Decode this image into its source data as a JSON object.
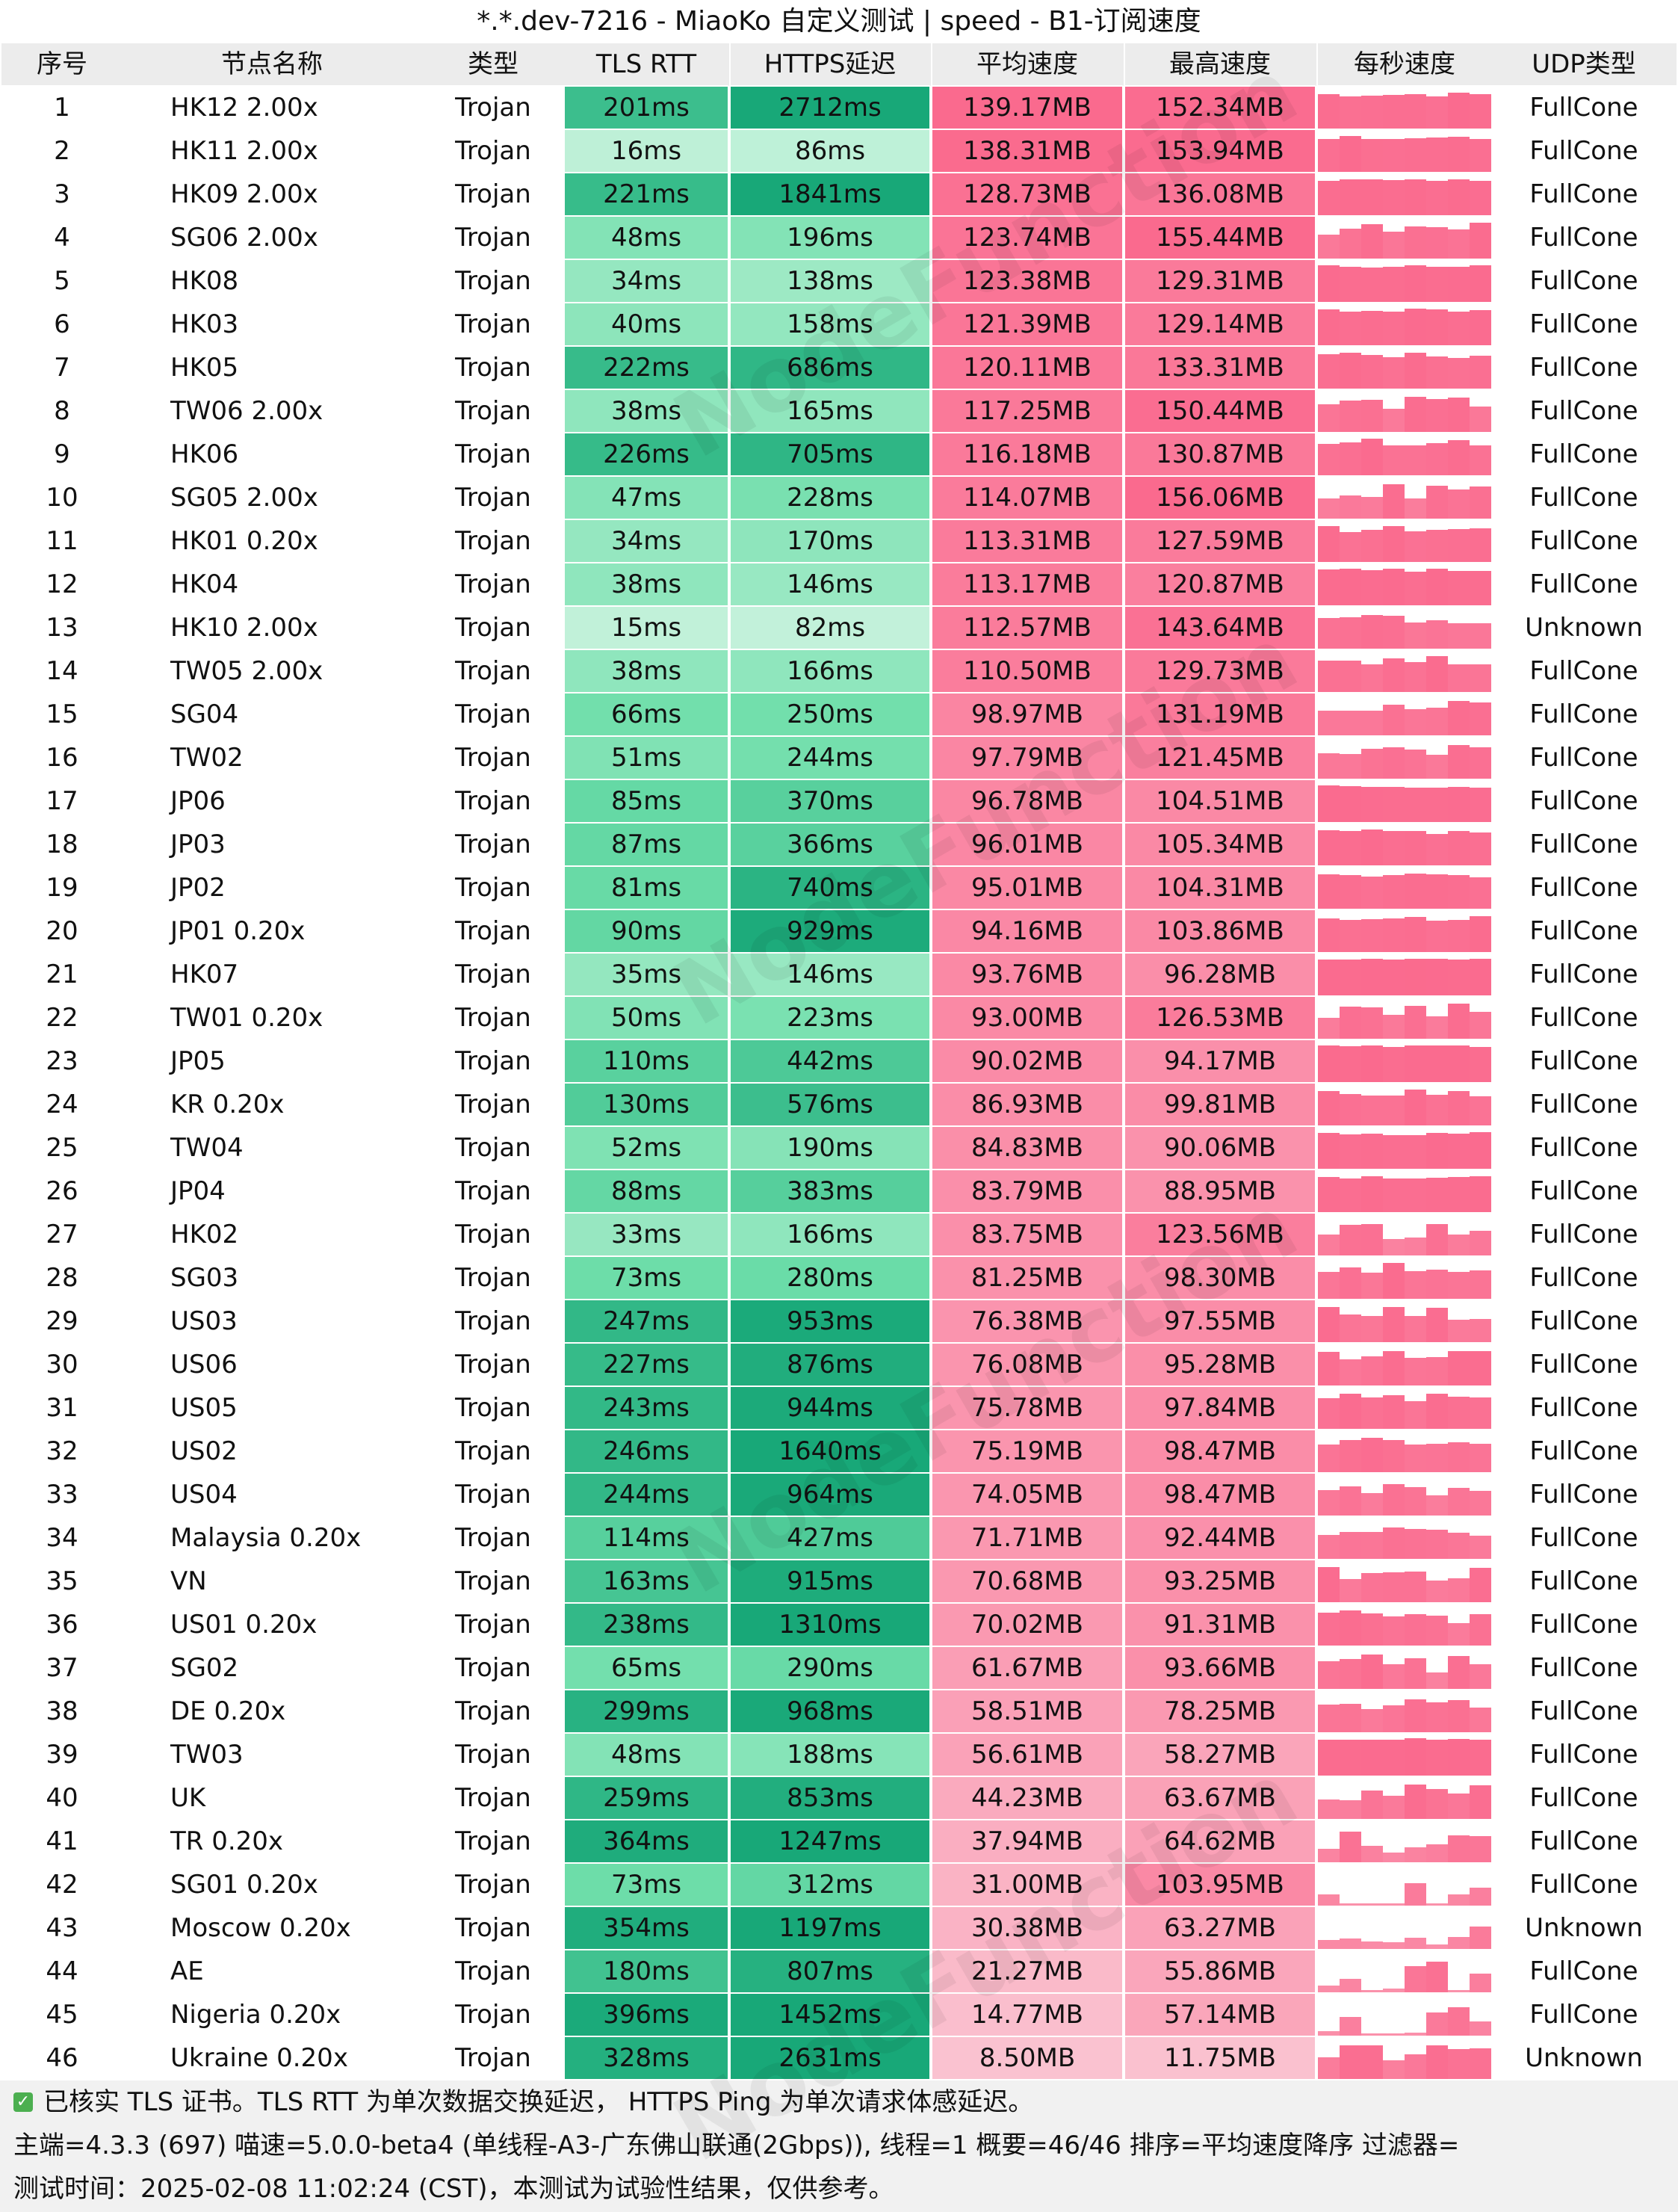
{
  "title": "*.*.dev-7216 - MiaoKo 自定义测试 | speed - B1-订阅速度",
  "headers": [
    "序号",
    "节点名称",
    "类型",
    "TLS RTT",
    "HTTPS延迟",
    "平均速度",
    "最高速度",
    "每秒速度",
    "UDP类型"
  ],
  "rows": [
    {
      "idx": "1",
      "flag": "hk",
      "name": "HK12 2.00x",
      "type": "Trojan",
      "tls": "201ms",
      "https": "2712ms",
      "avg": "139.17MB",
      "max": "152.34MB",
      "udp": "FullCone"
    },
    {
      "idx": "2",
      "flag": "hk",
      "name": "HK11 2.00x",
      "type": "Trojan",
      "tls": "16ms",
      "https": "86ms",
      "avg": "138.31MB",
      "max": "153.94MB",
      "udp": "FullCone"
    },
    {
      "idx": "3",
      "flag": "hk",
      "name": "HK09 2.00x",
      "type": "Trojan",
      "tls": "221ms",
      "https": "1841ms",
      "avg": "128.73MB",
      "max": "136.08MB",
      "udp": "FullCone"
    },
    {
      "idx": "4",
      "flag": "sg",
      "name": "SG06 2.00x",
      "type": "Trojan",
      "tls": "48ms",
      "https": "196ms",
      "avg": "123.74MB",
      "max": "155.44MB",
      "udp": "FullCone"
    },
    {
      "idx": "5",
      "flag": "hk",
      "name": "HK08",
      "type": "Trojan",
      "tls": "34ms",
      "https": "138ms",
      "avg": "123.38MB",
      "max": "129.31MB",
      "udp": "FullCone"
    },
    {
      "idx": "6",
      "flag": "hk",
      "name": "HK03",
      "type": "Trojan",
      "tls": "40ms",
      "https": "158ms",
      "avg": "121.39MB",
      "max": "129.14MB",
      "udp": "FullCone"
    },
    {
      "idx": "7",
      "flag": "hk",
      "name": "HK05",
      "type": "Trojan",
      "tls": "222ms",
      "https": "686ms",
      "avg": "120.11MB",
      "max": "133.31MB",
      "udp": "FullCone"
    },
    {
      "idx": "8",
      "flag": "cn",
      "name": "TW06 2.00x",
      "type": "Trojan",
      "tls": "38ms",
      "https": "165ms",
      "avg": "117.25MB",
      "max": "150.44MB",
      "udp": "FullCone"
    },
    {
      "idx": "9",
      "flag": "hk",
      "name": "HK06",
      "type": "Trojan",
      "tls": "226ms",
      "https": "705ms",
      "avg": "116.18MB",
      "max": "130.87MB",
      "udp": "FullCone"
    },
    {
      "idx": "10",
      "flag": "sg",
      "name": "SG05 2.00x",
      "type": "Trojan",
      "tls": "47ms",
      "https": "228ms",
      "avg": "114.07MB",
      "max": "156.06MB",
      "udp": "FullCone"
    },
    {
      "idx": "11",
      "flag": "hk",
      "name": "HK01 0.20x",
      "type": "Trojan",
      "tls": "34ms",
      "https": "170ms",
      "avg": "113.31MB",
      "max": "127.59MB",
      "udp": "FullCone"
    },
    {
      "idx": "12",
      "flag": "hk",
      "name": "HK04",
      "type": "Trojan",
      "tls": "38ms",
      "https": "146ms",
      "avg": "113.17MB",
      "max": "120.87MB",
      "udp": "FullCone"
    },
    {
      "idx": "13",
      "flag": "hk",
      "name": "HK10 2.00x",
      "type": "Trojan",
      "tls": "15ms",
      "https": "82ms",
      "avg": "112.57MB",
      "max": "143.64MB",
      "udp": "Unknown"
    },
    {
      "idx": "14",
      "flag": "cn",
      "name": "TW05 2.00x",
      "type": "Trojan",
      "tls": "38ms",
      "https": "166ms",
      "avg": "110.50MB",
      "max": "129.73MB",
      "udp": "FullCone"
    },
    {
      "idx": "15",
      "flag": "sg",
      "name": "SG04",
      "type": "Trojan",
      "tls": "66ms",
      "https": "250ms",
      "avg": "98.97MB",
      "max": "131.19MB",
      "udp": "FullCone"
    },
    {
      "idx": "16",
      "flag": "cn",
      "name": "TW02",
      "type": "Trojan",
      "tls": "51ms",
      "https": "244ms",
      "avg": "97.79MB",
      "max": "121.45MB",
      "udp": "FullCone"
    },
    {
      "idx": "17",
      "flag": "jp",
      "name": "JP06",
      "type": "Trojan",
      "tls": "85ms",
      "https": "370ms",
      "avg": "96.78MB",
      "max": "104.51MB",
      "udp": "FullCone"
    },
    {
      "idx": "18",
      "flag": "jp",
      "name": "JP03",
      "type": "Trojan",
      "tls": "87ms",
      "https": "366ms",
      "avg": "96.01MB",
      "max": "105.34MB",
      "udp": "FullCone"
    },
    {
      "idx": "19",
      "flag": "jp",
      "name": "JP02",
      "type": "Trojan",
      "tls": "81ms",
      "https": "740ms",
      "avg": "95.01MB",
      "max": "104.31MB",
      "udp": "FullCone"
    },
    {
      "idx": "20",
      "flag": "jp",
      "name": "JP01 0.20x",
      "type": "Trojan",
      "tls": "90ms",
      "https": "929ms",
      "avg": "94.16MB",
      "max": "103.86MB",
      "udp": "FullCone"
    },
    {
      "idx": "21",
      "flag": "hk",
      "name": "HK07",
      "type": "Trojan",
      "tls": "35ms",
      "https": "146ms",
      "avg": "93.76MB",
      "max": "96.28MB",
      "udp": "FullCone"
    },
    {
      "idx": "22",
      "flag": "cn",
      "name": "TW01 0.20x",
      "type": "Trojan",
      "tls": "50ms",
      "https": "223ms",
      "avg": "93.00MB",
      "max": "126.53MB",
      "udp": "FullCone"
    },
    {
      "idx": "23",
      "flag": "jp",
      "name": "JP05",
      "type": "Trojan",
      "tls": "110ms",
      "https": "442ms",
      "avg": "90.02MB",
      "max": "94.17MB",
      "udp": "FullCone"
    },
    {
      "idx": "24",
      "flag": "kr",
      "name": "KR 0.20x",
      "type": "Trojan",
      "tls": "130ms",
      "https": "576ms",
      "avg": "86.93MB",
      "max": "99.81MB",
      "udp": "FullCone"
    },
    {
      "idx": "25",
      "flag": "cn",
      "name": "TW04",
      "type": "Trojan",
      "tls": "52ms",
      "https": "190ms",
      "avg": "84.83MB",
      "max": "90.06MB",
      "udp": "FullCone"
    },
    {
      "idx": "26",
      "flag": "jp",
      "name": "JP04",
      "type": "Trojan",
      "tls": "88ms",
      "https": "383ms",
      "avg": "83.79MB",
      "max": "88.95MB",
      "udp": "FullCone"
    },
    {
      "idx": "27",
      "flag": "hk",
      "name": "HK02",
      "type": "Trojan",
      "tls": "33ms",
      "https": "166ms",
      "avg": "83.75MB",
      "max": "123.56MB",
      "udp": "FullCone"
    },
    {
      "idx": "28",
      "flag": "sg",
      "name": "SG03",
      "type": "Trojan",
      "tls": "73ms",
      "https": "280ms",
      "avg": "81.25MB",
      "max": "98.30MB",
      "udp": "FullCone"
    },
    {
      "idx": "29",
      "flag": "us",
      "name": "US03",
      "type": "Trojan",
      "tls": "247ms",
      "https": "953ms",
      "avg": "76.38MB",
      "max": "97.55MB",
      "udp": "FullCone"
    },
    {
      "idx": "30",
      "flag": "us",
      "name": "US06",
      "type": "Trojan",
      "tls": "227ms",
      "https": "876ms",
      "avg": "76.08MB",
      "max": "95.28MB",
      "udp": "FullCone"
    },
    {
      "idx": "31",
      "flag": "us",
      "name": "US05",
      "type": "Trojan",
      "tls": "243ms",
      "https": "944ms",
      "avg": "75.78MB",
      "max": "97.84MB",
      "udp": "FullCone"
    },
    {
      "idx": "32",
      "flag": "us",
      "name": "US02",
      "type": "Trojan",
      "tls": "246ms",
      "https": "1640ms",
      "avg": "75.19MB",
      "max": "98.47MB",
      "udp": "FullCone"
    },
    {
      "idx": "33",
      "flag": "us",
      "name": "US04",
      "type": "Trojan",
      "tls": "244ms",
      "https": "964ms",
      "avg": "74.05MB",
      "max": "98.47MB",
      "udp": "FullCone"
    },
    {
      "idx": "34",
      "flag": "my",
      "name": "Malaysia 0.20x",
      "type": "Trojan",
      "tls": "114ms",
      "https": "427ms",
      "avg": "71.71MB",
      "max": "92.44MB",
      "udp": "FullCone"
    },
    {
      "idx": "35",
      "flag": "vn",
      "name": "VN",
      "type": "Trojan",
      "tls": "163ms",
      "https": "915ms",
      "avg": "70.68MB",
      "max": "93.25MB",
      "udp": "FullCone"
    },
    {
      "idx": "36",
      "flag": "us",
      "name": "US01 0.20x",
      "type": "Trojan",
      "tls": "238ms",
      "https": "1310ms",
      "avg": "70.02MB",
      "max": "91.31MB",
      "udp": "FullCone"
    },
    {
      "idx": "37",
      "flag": "sg",
      "name": "SG02",
      "type": "Trojan",
      "tls": "65ms",
      "https": "290ms",
      "avg": "61.67MB",
      "max": "93.66MB",
      "udp": "FullCone"
    },
    {
      "idx": "38",
      "flag": "de",
      "name": "DE 0.20x",
      "type": "Trojan",
      "tls": "299ms",
      "https": "968ms",
      "avg": "58.51MB",
      "max": "78.25MB",
      "udp": "FullCone"
    },
    {
      "idx": "39",
      "flag": "cn",
      "name": "TW03",
      "type": "Trojan",
      "tls": "48ms",
      "https": "188ms",
      "avg": "56.61MB",
      "max": "58.27MB",
      "udp": "FullCone"
    },
    {
      "idx": "40",
      "flag": "uk",
      "name": "UK",
      "type": "Trojan",
      "tls": "259ms",
      "https": "853ms",
      "avg": "44.23MB",
      "max": "63.67MB",
      "udp": "FullCone"
    },
    {
      "idx": "41",
      "flag": "tr",
      "name": "TR 0.20x",
      "type": "Trojan",
      "tls": "364ms",
      "https": "1247ms",
      "avg": "37.94MB",
      "max": "64.62MB",
      "udp": "FullCone"
    },
    {
      "idx": "42",
      "flag": "sg",
      "name": "SG01 0.20x",
      "type": "Trojan",
      "tls": "73ms",
      "https": "312ms",
      "avg": "31.00MB",
      "max": "103.95MB",
      "udp": "FullCone"
    },
    {
      "idx": "43",
      "flag": "ru",
      "name": "Moscow 0.20x",
      "type": "Trojan",
      "tls": "354ms",
      "https": "1197ms",
      "avg": "30.38MB",
      "max": "63.27MB",
      "udp": "Unknown"
    },
    {
      "idx": "44",
      "flag": "ae",
      "name": "AE",
      "type": "Trojan",
      "tls": "180ms",
      "https": "807ms",
      "avg": "21.27MB",
      "max": "55.86MB",
      "udp": "FullCone"
    },
    {
      "idx": "45",
      "flag": "ng",
      "name": "Nigeria 0.20x",
      "type": "Trojan",
      "tls": "396ms",
      "https": "1452ms",
      "avg": "14.77MB",
      "max": "57.14MB",
      "udp": "FullCone"
    },
    {
      "idx": "46",
      "flag": "ua",
      "name": "Ukraine 0.20x",
      "type": "Trojan",
      "tls": "328ms",
      "https": "2631ms",
      "avg": "8.50MB",
      "max": "11.75MB",
      "udp": "Unknown"
    }
  ],
  "footer": {
    "line1": "已核实 TLS 证书。TLS RTT 为单次数据交换延迟， HTTPS Ping 为单次请求体感延迟。",
    "line2": "主端=4.3.3 (697) 喵速=5.0.0-beta4 (单线程-A3-广东佛山联通(2Gbps)), 线程=1 概要=46/46 排序=平均速度降序 过滤器=",
    "line3": "测试时间：2025-02-08 11:02:24 (CST)，本测试为试验性结果，仅供参考。"
  },
  "watermark": "NodeFunction",
  "colors": {
    "header_bg": "#ececec",
    "footer_bg": "#f1f1f1",
    "speed_pink": "#ff6f91",
    "latency_green_dark": "#16a878",
    "latency_green_light": "#c8f2de",
    "check_green": "#4caf50"
  },
  "icons": {
    "check": "check-icon"
  }
}
